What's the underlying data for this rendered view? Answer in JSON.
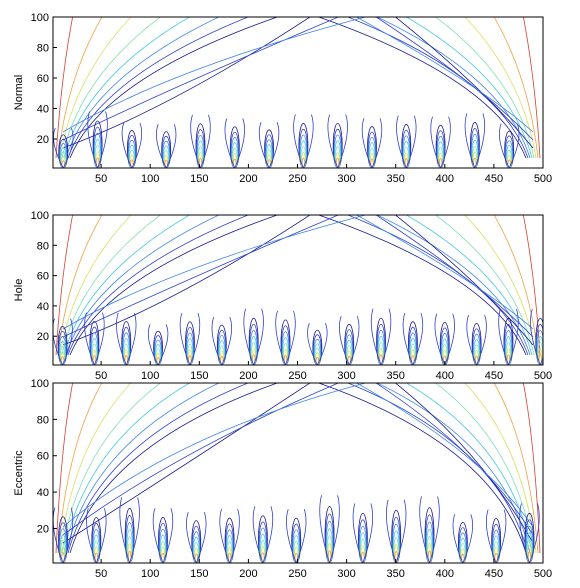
{
  "chart_data": [
    {
      "type": "contour",
      "ylabel": "Normal",
      "xlim": [
        1,
        500
      ],
      "ylim": [
        1,
        100
      ],
      "xticks": [
        50,
        100,
        150,
        200,
        250,
        300,
        350,
        400,
        450,
        500
      ],
      "yticks": [
        20,
        40,
        60,
        80,
        100
      ]
    },
    {
      "type": "contour",
      "ylabel": "Hole",
      "xlim": [
        1,
        500
      ],
      "ylim": [
        1,
        100
      ],
      "xticks": [
        50,
        100,
        150,
        200,
        250,
        300,
        350,
        400,
        450,
        500
      ],
      "yticks": [
        20,
        40,
        60,
        80,
        100
      ]
    },
    {
      "type": "contour",
      "ylabel": "Eccentric",
      "xlim": [
        1,
        500
      ],
      "ylim": [
        1,
        100
      ],
      "xticks": [
        50,
        100,
        150,
        200,
        250,
        300,
        350,
        400,
        450,
        500
      ],
      "yticks": [
        20,
        40,
        60,
        80,
        100
      ]
    }
  ]
}
